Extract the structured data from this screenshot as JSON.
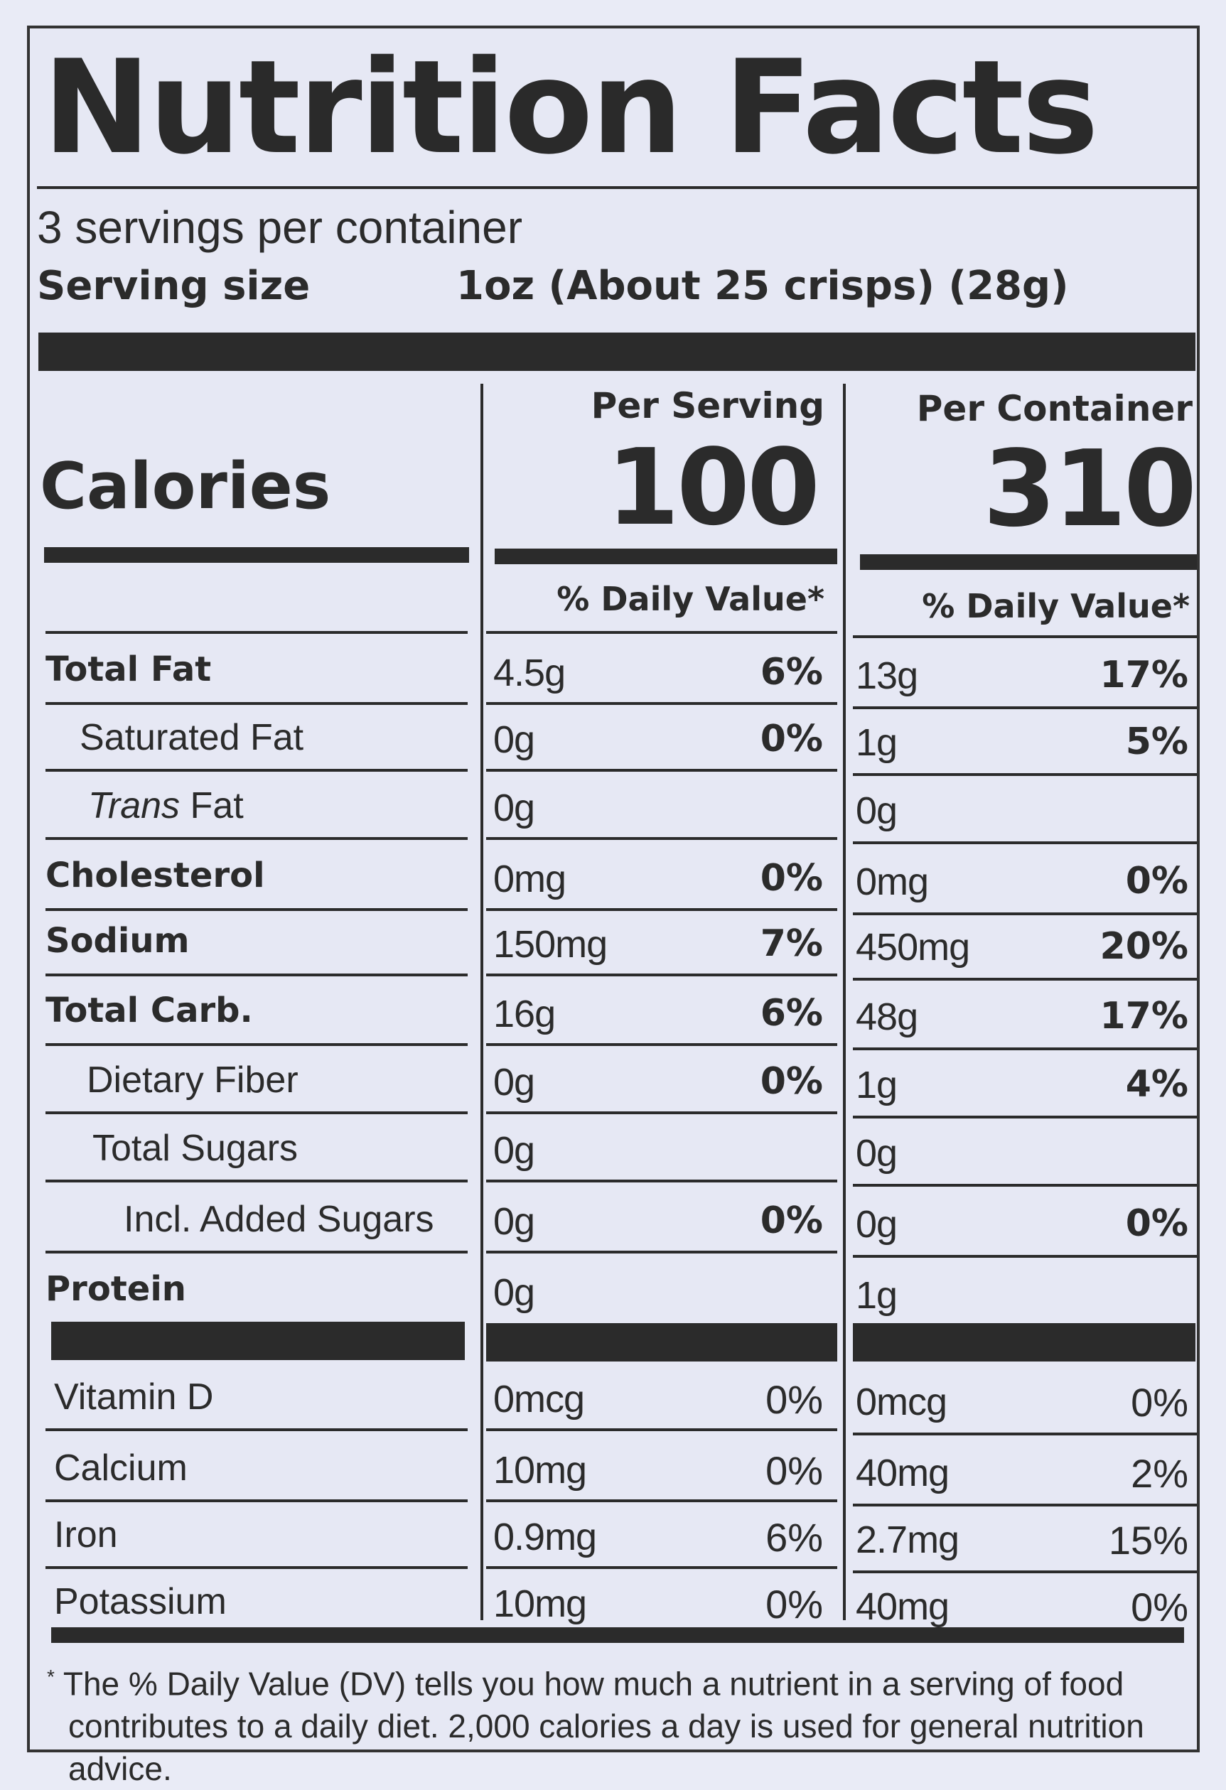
{
  "title": "Nutrition Facts",
  "servings_per_container": "3 servings per container",
  "serving_size_label": "Serving size",
  "serving_size_value": "1oz (About 25 crisps) (28g)",
  "columns": {
    "per_serving": "Per Serving",
    "per_container": "Per Container"
  },
  "calories_label": "Calories",
  "calories": {
    "per_serving": "100",
    "per_container": "310"
  },
  "daily_value_header": "% Daily Value*",
  "nutrients": [
    {
      "label": "Total Fat",
      "serving_amount": "4.5g",
      "serving_dv": "6%",
      "container_amount": "13g",
      "container_dv": "17%"
    },
    {
      "label": "Saturated Fat",
      "serving_amount": "0g",
      "serving_dv": "0%",
      "container_amount": "1g",
      "container_dv": "5%"
    },
    {
      "label_italic": "Trans",
      "label_rest": " Fat",
      "serving_amount": "0g",
      "serving_dv": "",
      "container_amount": "0g",
      "container_dv": ""
    },
    {
      "label": "Cholesterol",
      "serving_amount": "0mg",
      "serving_dv": "0%",
      "container_amount": "0mg",
      "container_dv": "0%"
    },
    {
      "label": "Sodium",
      "serving_amount": "150mg",
      "serving_dv": "7%",
      "container_amount": "450mg",
      "container_dv": "20%"
    },
    {
      "label": "Total Carb.",
      "serving_amount": "16g",
      "serving_dv": "6%",
      "container_amount": "48g",
      "container_dv": "17%"
    },
    {
      "label": "Dietary Fiber",
      "serving_amount": "0g",
      "serving_dv": "0%",
      "container_amount": "1g",
      "container_dv": "4%"
    },
    {
      "label": "Total Sugars",
      "serving_amount": "0g",
      "serving_dv": "",
      "container_amount": "0g",
      "container_dv": ""
    },
    {
      "label": "Incl. Added Sugars",
      "serving_amount": "0g",
      "serving_dv": "0%",
      "container_amount": "0g",
      "container_dv": "0%"
    },
    {
      "label": "Protein",
      "serving_amount": "0g",
      "serving_dv": "",
      "container_amount": "1g",
      "container_dv": ""
    }
  ],
  "vitamins": [
    {
      "label": "Vitamin D",
      "serving_amount": "0mcg",
      "serving_dv": "0%",
      "container_amount": "0mcg",
      "container_dv": "0%"
    },
    {
      "label": "Calcium",
      "serving_amount": "10mg",
      "serving_dv": "0%",
      "container_amount": "40mg",
      "container_dv": "2%"
    },
    {
      "label": "Iron",
      "serving_amount": "0.9mg",
      "serving_dv": "6%",
      "container_amount": "2.7mg",
      "container_dv": "15%"
    },
    {
      "label": "Potassium",
      "serving_amount": "10mg",
      "serving_dv": "0%",
      "container_amount": "40mg",
      "container_dv": "0%"
    }
  ],
  "footnote_mark": "*",
  "footnote_line1": "The % Daily Value (DV) tells you how much a nutrient in a serving of food",
  "footnote_line2": "contributes to a daily diet. 2,000 calories a day is used for general nutrition advice."
}
